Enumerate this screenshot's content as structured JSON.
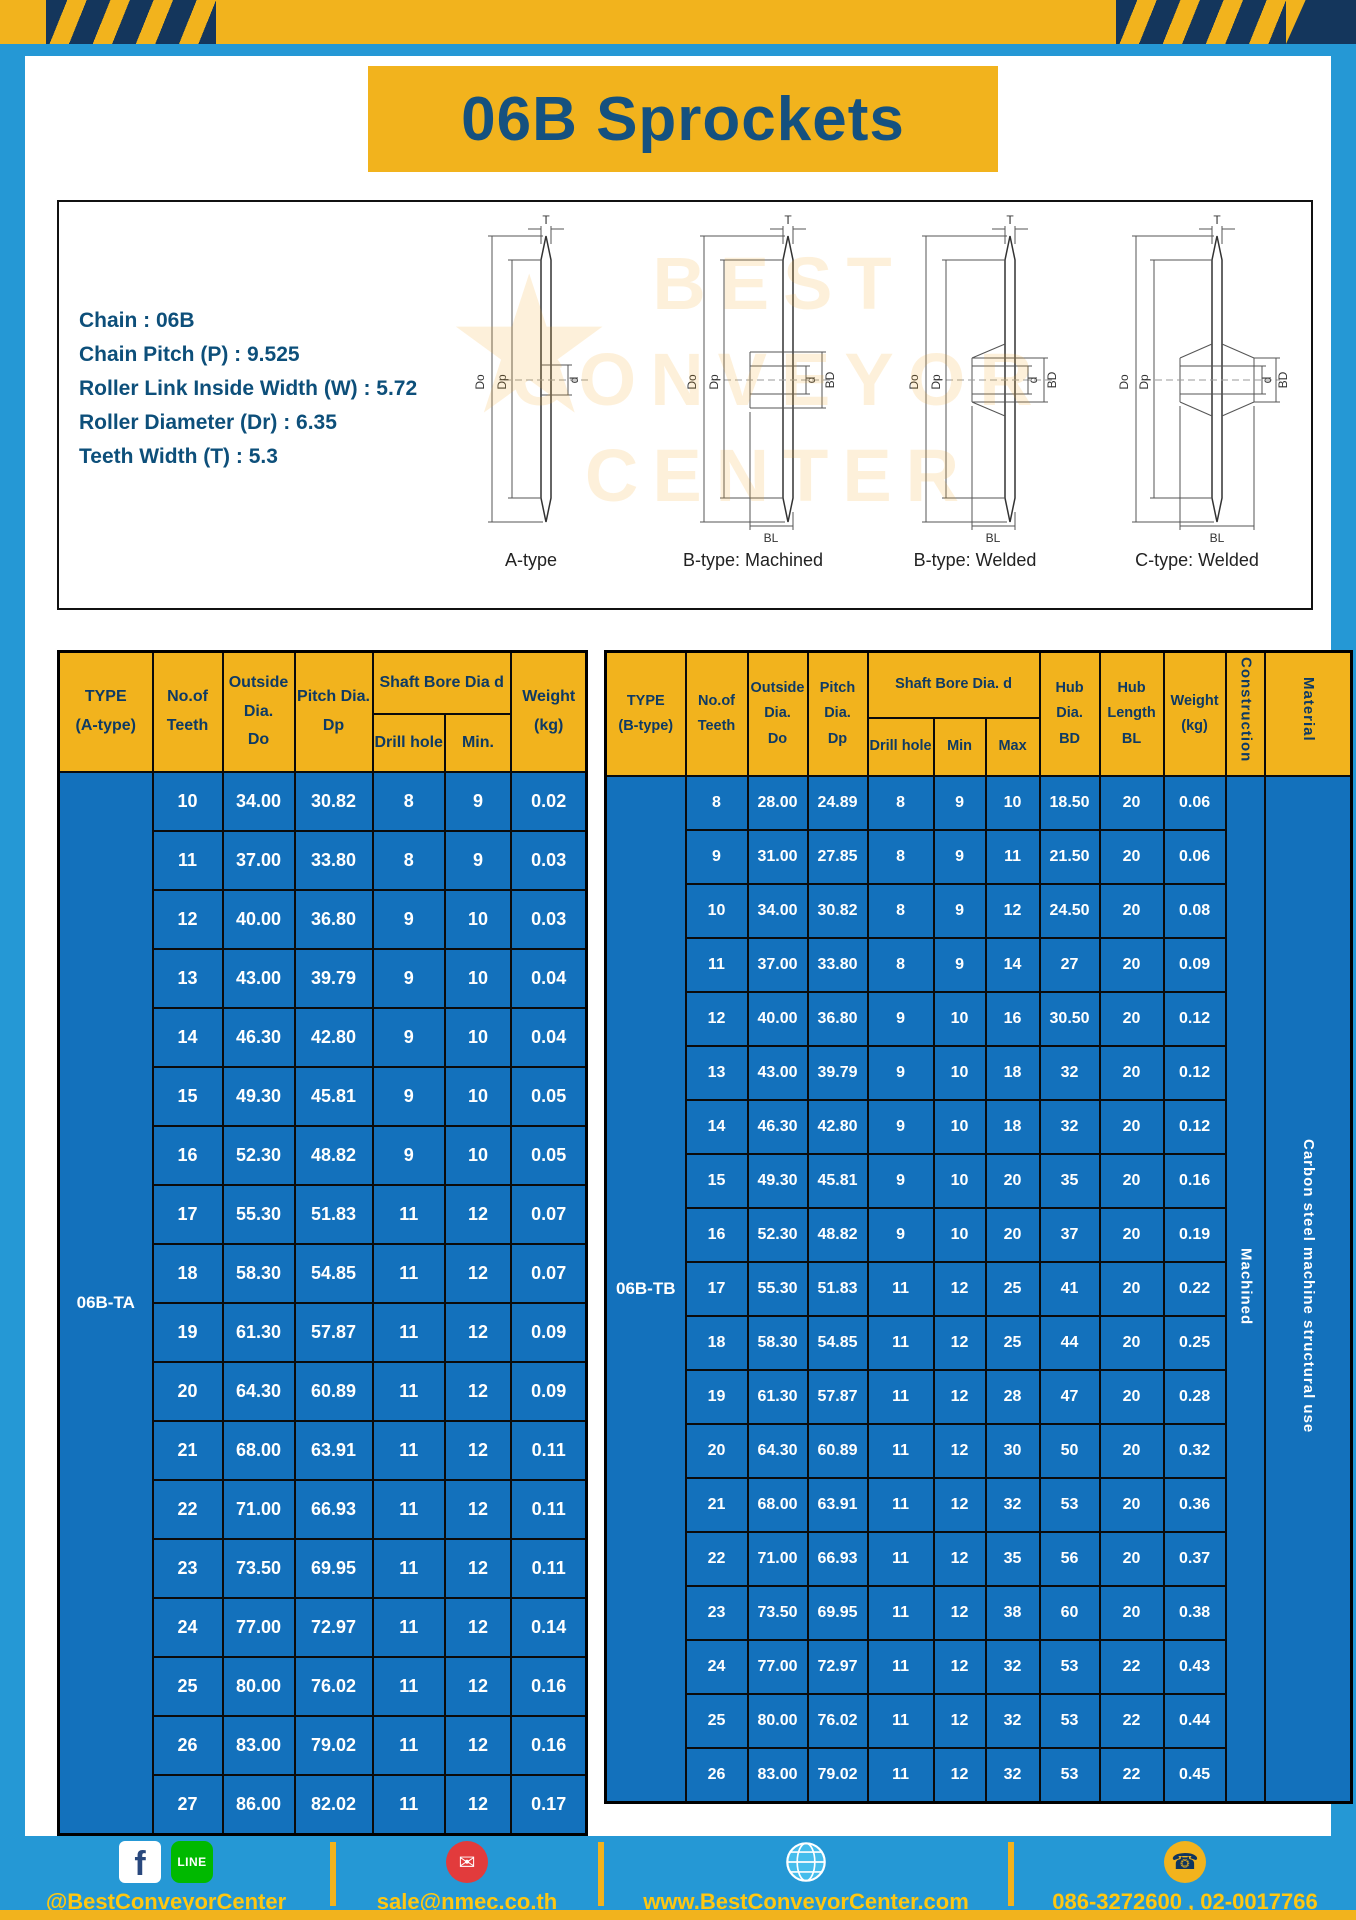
{
  "title": "06B Sprockets",
  "specs": {
    "lines": [
      "Chain : 06B",
      "Chain Pitch (P) : 9.525",
      "Roller Link Inside Width (W) : 5.72",
      "Roller Diameter (Dr) : 6.35",
      "Teeth Width (T) : 5.3"
    ]
  },
  "diagram": {
    "variants": [
      {
        "label": "A-type"
      },
      {
        "label": "B-type: Machined"
      },
      {
        "label": "B-type: Welded"
      },
      {
        "label": "C-type: Welded"
      }
    ],
    "dims": {
      "t": "T",
      "dout": "Do",
      "dp": "Dp",
      "d": "d",
      "bd": "BD",
      "bl": "BL"
    },
    "watermark": {
      "star": "★",
      "line1": "BEST",
      "line2": "CONVEYOR",
      "line3": "CENTER"
    }
  },
  "table_a": {
    "headers": {
      "type": "TYPE\n(A-type)",
      "teeth": "No.of\nTeeth",
      "outside": "Outside\nDia.\nDo",
      "pitch": "Pitch Dia.\nDp",
      "shaft_group": "Shaft Bore Dia d",
      "drill": "Drill hole",
      "min": "Min.",
      "weight": "Weight\n(kg)"
    },
    "type_value": "06B-TA",
    "rows": [
      [
        "10",
        "34.00",
        "30.82",
        "8",
        "9",
        "0.02"
      ],
      [
        "11",
        "37.00",
        "33.80",
        "8",
        "9",
        "0.03"
      ],
      [
        "12",
        "40.00",
        "36.80",
        "9",
        "10",
        "0.03"
      ],
      [
        "13",
        "43.00",
        "39.79",
        "9",
        "10",
        "0.04"
      ],
      [
        "14",
        "46.30",
        "42.80",
        "9",
        "10",
        "0.04"
      ],
      [
        "15",
        "49.30",
        "45.81",
        "9",
        "10",
        "0.05"
      ],
      [
        "16",
        "52.30",
        "48.82",
        "9",
        "10",
        "0.05"
      ],
      [
        "17",
        "55.30",
        "51.83",
        "11",
        "12",
        "0.07"
      ],
      [
        "18",
        "58.30",
        "54.85",
        "11",
        "12",
        "0.07"
      ],
      [
        "19",
        "61.30",
        "57.87",
        "11",
        "12",
        "0.09"
      ],
      [
        "20",
        "64.30",
        "60.89",
        "11",
        "12",
        "0.09"
      ],
      [
        "21",
        "68.00",
        "63.91",
        "11",
        "12",
        "0.11"
      ],
      [
        "22",
        "71.00",
        "66.93",
        "11",
        "12",
        "0.11"
      ],
      [
        "23",
        "73.50",
        "69.95",
        "11",
        "12",
        "0.11"
      ],
      [
        "24",
        "77.00",
        "72.97",
        "11",
        "12",
        "0.14"
      ],
      [
        "25",
        "80.00",
        "76.02",
        "11",
        "12",
        "0.16"
      ],
      [
        "26",
        "83.00",
        "79.02",
        "11",
        "12",
        "0.16"
      ],
      [
        "27",
        "86.00",
        "82.02",
        "11",
        "12",
        "0.17"
      ]
    ]
  },
  "table_b": {
    "headers": {
      "type": "TYPE\n(B-type)",
      "teeth": "No.of\nTeeth",
      "outside": "Outside\nDia.\nDo",
      "pitch": "Pitch\nDia.\nDp",
      "shaft_group": "Shaft Bore Dia. d",
      "drill": "Drill hole",
      "min": "Min",
      "max": "Max",
      "hub_dia": "Hub\nDia.\nBD",
      "hub_len": "Hub\nLength\nBL",
      "weight": "Weight\n(kg)",
      "construction": "Construction",
      "material": "Material"
    },
    "type_value": "06B-TB",
    "construction_value": "Machined",
    "material_value": "Carbon steel machine structural use",
    "rows": [
      [
        "8",
        "28.00",
        "24.89",
        "8",
        "9",
        "10",
        "18.50",
        "20",
        "0.06"
      ],
      [
        "9",
        "31.00",
        "27.85",
        "8",
        "9",
        "11",
        "21.50",
        "20",
        "0.06"
      ],
      [
        "10",
        "34.00",
        "30.82",
        "8",
        "9",
        "12",
        "24.50",
        "20",
        "0.08"
      ],
      [
        "11",
        "37.00",
        "33.80",
        "8",
        "9",
        "14",
        "27",
        "20",
        "0.09"
      ],
      [
        "12",
        "40.00",
        "36.80",
        "9",
        "10",
        "16",
        "30.50",
        "20",
        "0.12"
      ],
      [
        "13",
        "43.00",
        "39.79",
        "9",
        "10",
        "18",
        "32",
        "20",
        "0.12"
      ],
      [
        "14",
        "46.30",
        "42.80",
        "9",
        "10",
        "18",
        "32",
        "20",
        "0.12"
      ],
      [
        "15",
        "49.30",
        "45.81",
        "9",
        "10",
        "20",
        "35",
        "20",
        "0.16"
      ],
      [
        "16",
        "52.30",
        "48.82",
        "9",
        "10",
        "20",
        "37",
        "20",
        "0.19"
      ],
      [
        "17",
        "55.30",
        "51.83",
        "11",
        "12",
        "25",
        "41",
        "20",
        "0.22"
      ],
      [
        "18",
        "58.30",
        "54.85",
        "11",
        "12",
        "25",
        "44",
        "20",
        "0.25"
      ],
      [
        "19",
        "61.30",
        "57.87",
        "11",
        "12",
        "28",
        "47",
        "20",
        "0.28"
      ],
      [
        "20",
        "64.30",
        "60.89",
        "11",
        "12",
        "30",
        "50",
        "20",
        "0.32"
      ],
      [
        "21",
        "68.00",
        "63.91",
        "11",
        "12",
        "32",
        "53",
        "20",
        "0.36"
      ],
      [
        "22",
        "71.00",
        "66.93",
        "11",
        "12",
        "35",
        "56",
        "20",
        "0.37"
      ],
      [
        "23",
        "73.50",
        "69.95",
        "11",
        "12",
        "38",
        "60",
        "20",
        "0.38"
      ],
      [
        "24",
        "77.00",
        "72.97",
        "11",
        "12",
        "32",
        "53",
        "22",
        "0.43"
      ],
      [
        "25",
        "80.00",
        "76.02",
        "11",
        "12",
        "32",
        "53",
        "22",
        "0.44"
      ],
      [
        "26",
        "83.00",
        "79.02",
        "11",
        "12",
        "32",
        "53",
        "22",
        "0.45"
      ]
    ]
  },
  "footer": {
    "items": [
      {
        "label": "@BestConveyorCenter"
      },
      {
        "label": "sale@nmec.co.th"
      },
      {
        "label": "www.BestConveyorCenter.com"
      },
      {
        "label": "086-3272600 , 02-0017766"
      }
    ],
    "fb_label": "f",
    "line_label": "LINE",
    "mail_glyph": "✉",
    "phone_glyph": "☎"
  },
  "colors": {
    "page_blue": "#2598d5",
    "cell_blue": "#1371bc",
    "accent_yellow": "#f2b31d",
    "navy": "#14365c",
    "title_blue": "#15517f"
  }
}
